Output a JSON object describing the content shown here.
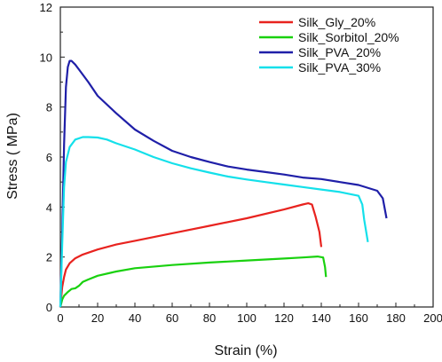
{
  "chart_data": {
    "type": "line",
    "xlabel": "Strain (%)",
    "ylabel": "Stress ( MPa)",
    "xlim": [
      0,
      200
    ],
    "ylim": [
      0,
      12
    ],
    "xticks": [
      0,
      20,
      40,
      60,
      80,
      100,
      120,
      140,
      160,
      180,
      200
    ],
    "yticks": [
      0,
      2,
      4,
      6,
      8,
      10,
      12
    ],
    "grid": false,
    "legend_position": "top-right",
    "series": [
      {
        "name": "Silk_Gly_20%",
        "color": "#e8231f",
        "x": [
          0,
          1,
          2,
          3,
          5,
          8,
          12,
          20,
          30,
          40,
          60,
          80,
          100,
          120,
          130,
          133,
          135,
          137,
          139,
          140
        ],
        "y": [
          0,
          0.8,
          1.2,
          1.5,
          1.75,
          1.95,
          2.1,
          2.3,
          2.5,
          2.65,
          2.95,
          3.25,
          3.55,
          3.9,
          4.1,
          4.15,
          4.1,
          3.6,
          3.0,
          2.4
        ]
      },
      {
        "name": "Silk_Sorbitol_20%",
        "color": "#19d10f",
        "x": [
          0,
          1,
          2,
          4,
          6,
          8,
          10,
          12,
          15,
          20,
          30,
          40,
          60,
          80,
          100,
          120,
          130,
          138,
          141,
          142,
          142.5
        ],
        "y": [
          0,
          0.3,
          0.45,
          0.6,
          0.72,
          0.75,
          0.85,
          1.0,
          1.1,
          1.25,
          1.42,
          1.55,
          1.68,
          1.78,
          1.86,
          1.94,
          1.98,
          2.02,
          1.98,
          1.6,
          1.2
        ]
      },
      {
        "name": "Silk_PVA_20%",
        "color": "#1f1fa8",
        "x": [
          0,
          1,
          2,
          3,
          4,
          5,
          6,
          8,
          10,
          15,
          20,
          30,
          40,
          50,
          60,
          70,
          80,
          90,
          100,
          110,
          120,
          130,
          140,
          150,
          160,
          170,
          173,
          175
        ],
        "y": [
          0,
          3.0,
          6.5,
          8.8,
          9.6,
          9.85,
          9.85,
          9.7,
          9.5,
          9.0,
          8.45,
          7.75,
          7.1,
          6.65,
          6.25,
          6.0,
          5.8,
          5.62,
          5.5,
          5.4,
          5.3,
          5.18,
          5.12,
          5.0,
          4.88,
          4.65,
          4.35,
          3.55
        ]
      },
      {
        "name": "Silk_PVA_30%",
        "color": "#14e0ea",
        "x": [
          0,
          1,
          2,
          3,
          5,
          8,
          12,
          15,
          20,
          25,
          30,
          40,
          50,
          60,
          70,
          80,
          90,
          100,
          110,
          120,
          130,
          140,
          150,
          160,
          162,
          163,
          165
        ],
        "y": [
          0,
          2.5,
          4.8,
          5.8,
          6.4,
          6.7,
          6.8,
          6.8,
          6.78,
          6.7,
          6.55,
          6.3,
          6.0,
          5.75,
          5.55,
          5.38,
          5.22,
          5.1,
          5.0,
          4.9,
          4.8,
          4.7,
          4.6,
          4.45,
          4.1,
          3.5,
          2.6
        ]
      }
    ]
  }
}
